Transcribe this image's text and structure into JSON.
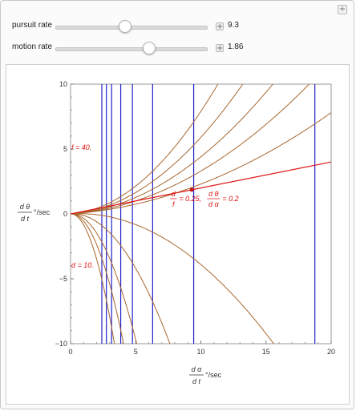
{
  "controls": {
    "pursuit": {
      "label": "pursuit rate",
      "value": "9.3",
      "fraction": 0.465
    },
    "motion": {
      "label": "motion rate",
      "value": "1.86",
      "fraction": 0.62
    }
  },
  "icons": {
    "plus": "+"
  },
  "chart_data": {
    "type": "line",
    "x_ticks": [
      "0",
      "5",
      "10",
      "15",
      "20"
    ],
    "y_ticks": [
      "10",
      "5",
      "0",
      "−5",
      "−10"
    ],
    "xlim": [
      0,
      20
    ],
    "ylim": [
      -10,
      10
    ],
    "xlabel": {
      "top": "d α",
      "bottom": "d t",
      "unit": "°/sec"
    },
    "ylabel": {
      "top": "d θ",
      "bottom": "d t",
      "unit": "°/sec"
    },
    "blue_lines_x": [
      2.4,
      2.75,
      3.15,
      3.85,
      4.75,
      6.3,
      9.45,
      18.75
    ],
    "brown_curves": [
      {
        "a": 0.0,
        "b": 0.016
      },
      {
        "a": 0.0,
        "b": 0.026
      },
      {
        "a": 0.0,
        "b": 0.037
      },
      {
        "a": 0.0,
        "b": 0.052
      },
      {
        "a": 0.0,
        "b": 0.072
      },
      {
        "a": 0.0,
        "b": -0.045
      },
      {
        "a": 0.0,
        "b": -0.18
      },
      {
        "a": 0.0,
        "b": -0.4
      },
      {
        "a": 0.0,
        "b": -0.62
      },
      {
        "a": 0.0,
        "b": -0.9
      }
    ],
    "red_line": {
      "x0": 0,
      "y0": 0,
      "x1": 20,
      "y1": 4.0
    },
    "point": {
      "x": 9.3,
      "y": 1.86
    },
    "annotations": {
      "f": "f = 40.",
      "d": "d = 10.",
      "ratio_num_left": "d",
      "ratio_den_left": "f",
      "ratio_value_left": "= 0.25,",
      "ratio_num_right": "d θ",
      "ratio_den_right": "d α",
      "ratio_value_right": "= 0.2"
    },
    "colors": {
      "blue": "#2222cc",
      "brown": "#a8672e",
      "red": "#e01515",
      "point": "#c81010"
    }
  }
}
